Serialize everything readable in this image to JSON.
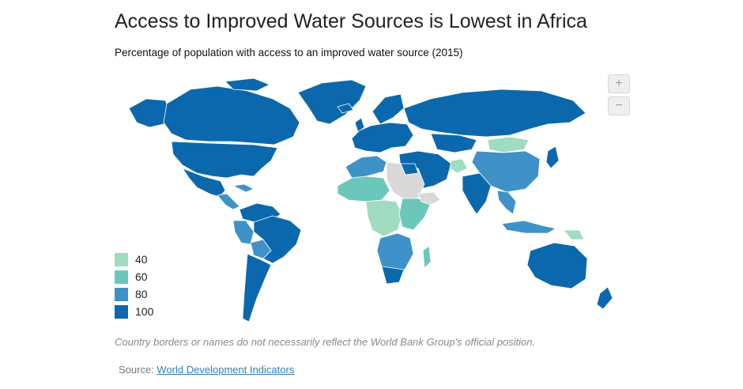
{
  "header": {
    "title": "Access to Improved Water Sources is Lowest in Africa",
    "subtitle": "Percentage of population with access to an improved water source (2015)"
  },
  "zoom": {
    "in_label": "+",
    "out_label": "−"
  },
  "legend": [
    {
      "label": "40",
      "color": "#9fdcc0"
    },
    {
      "label": "60",
      "color": "#6cc7bb"
    },
    {
      "label": "80",
      "color": "#3e92c8"
    },
    {
      "label": "100",
      "color": "#0b68ad"
    }
  ],
  "no_data_color": "#d9d9d9",
  "footer": {
    "disclaimer": "Country borders or names do not necessarily reflect the World Bank Group's official position.",
    "source_prefix": "Source: ",
    "source_link": "World Development Indicators"
  }
}
